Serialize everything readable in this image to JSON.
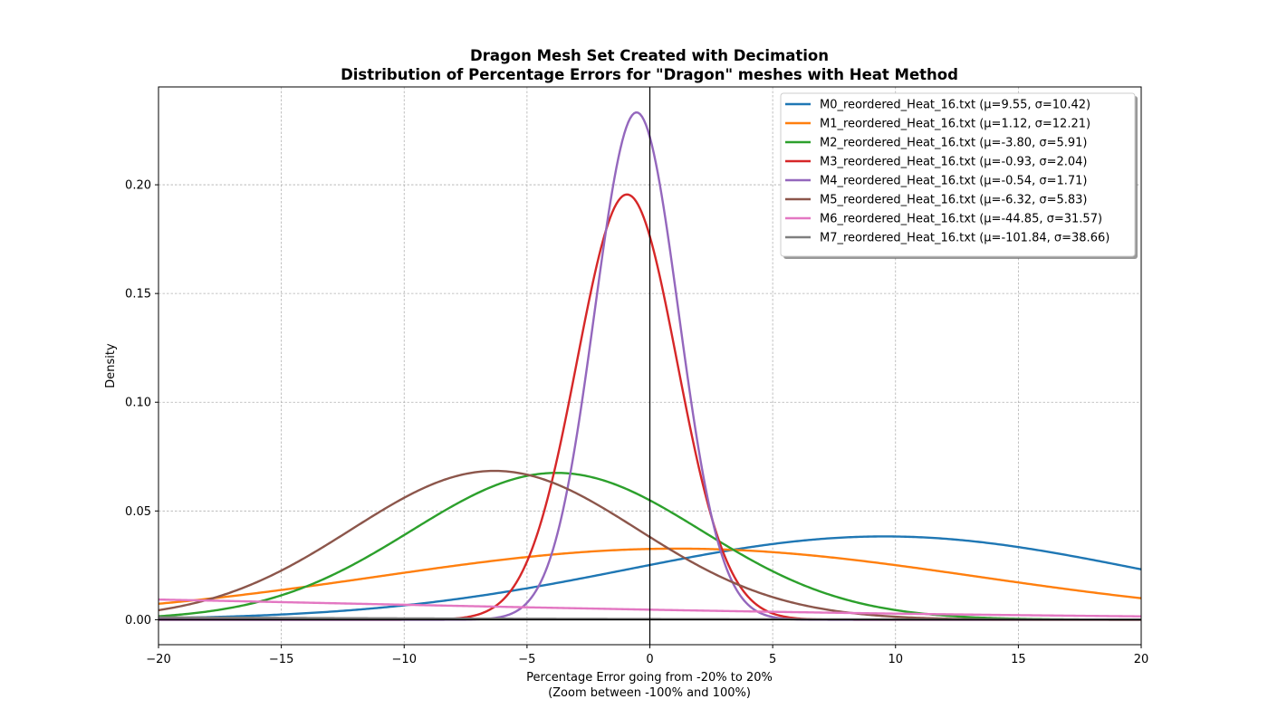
{
  "chart_data": {
    "type": "line",
    "title": "Dragon Mesh Set Created with Decimation",
    "subtitle": "Distribution of Percentage Errors for \"Dragon\" meshes with Heat Method",
    "xlabel": "Percentage Error going from -20% to 20%",
    "xlabel_sub": "(Zoom between -100% and 100%)",
    "ylabel": "Density",
    "xlim": [
      -20,
      20
    ],
    "ylim": [
      -0.0115,
      0.245
    ],
    "x_ticks": [
      -20,
      -15,
      -10,
      -5,
      0,
      5,
      10,
      15,
      20
    ],
    "x_tick_labels": [
      "−20",
      "−15",
      "−10",
      "−5",
      "0",
      "5",
      "10",
      "15",
      "20"
    ],
    "y_ticks": [
      0.0,
      0.05,
      0.1,
      0.15,
      0.2
    ],
    "y_tick_labels": [
      "0.00",
      "0.05",
      "0.10",
      "0.15",
      "0.20"
    ],
    "grid": true,
    "legend_position": "top-right",
    "reference_lines": {
      "vertical_x": 0,
      "horizontal_y": 0
    },
    "series": [
      {
        "name": "M0_reordered_Heat_16.txt (μ=9.55, σ=10.42)",
        "mu": 9.55,
        "sigma": 10.42,
        "color": "#1f77b4"
      },
      {
        "name": "M1_reordered_Heat_16.txt (μ=1.12, σ=12.21)",
        "mu": 1.12,
        "sigma": 12.21,
        "color": "#ff7f0e"
      },
      {
        "name": "M2_reordered_Heat_16.txt (μ=-3.80, σ=5.91)",
        "mu": -3.8,
        "sigma": 5.91,
        "color": "#2ca02c"
      },
      {
        "name": "M3_reordered_Heat_16.txt (μ=-0.93, σ=2.04)",
        "mu": -0.93,
        "sigma": 2.04,
        "color": "#d62728"
      },
      {
        "name": "M4_reordered_Heat_16.txt (μ=-0.54, σ=1.71)",
        "mu": -0.54,
        "sigma": 1.71,
        "color": "#9467bd"
      },
      {
        "name": "M5_reordered_Heat_16.txt (μ=-6.32, σ=5.83)",
        "mu": -6.32,
        "sigma": 5.83,
        "color": "#8c564b"
      },
      {
        "name": "M6_reordered_Heat_16.txt (μ=-44.85, σ=31.57)",
        "mu": -44.85,
        "sigma": 31.57,
        "color": "#e377c2"
      },
      {
        "name": "M7_reordered_Heat_16.txt (μ=-101.84, σ=38.66)",
        "mu": -101.84,
        "sigma": 38.66,
        "color": "#7f7f7f"
      }
    ]
  }
}
